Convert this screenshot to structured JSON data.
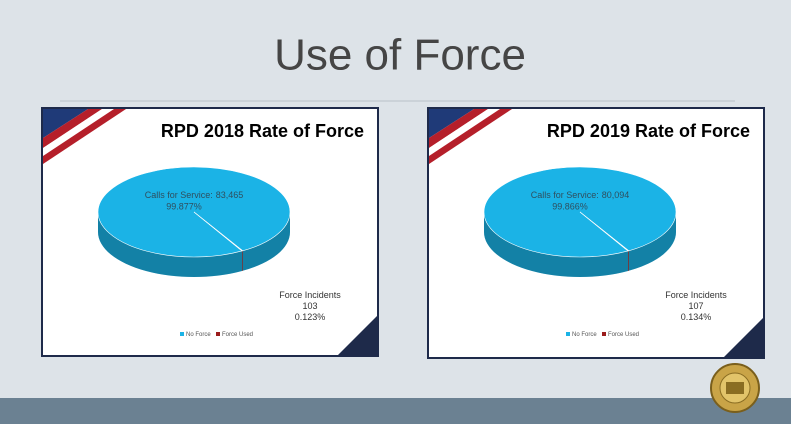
{
  "title": "Use of Force",
  "chart_data": [
    {
      "type": "pie",
      "title": "RPD 2018 Rate of Force",
      "categories": [
        "No Force",
        "Force Used"
      ],
      "colors": [
        "#1bb3e6",
        "#9b1c1c"
      ],
      "values": [
        99.877,
        0.123
      ],
      "value_labels": [
        "99.877%",
        "0.123%"
      ],
      "label_names": [
        "Calls for Service:",
        "Force Incidents"
      ],
      "count_labels": [
        "83,465",
        "103"
      ]
    },
    {
      "type": "pie",
      "title": "RPD 2019 Rate of Force",
      "categories": [
        "No Force",
        "Force Used"
      ],
      "colors": [
        "#1bb3e6",
        "#9b1c1c"
      ],
      "values": [
        99.866,
        0.134
      ],
      "value_labels": [
        "99.866%",
        "0.134%"
      ],
      "label_names": [
        "Calls for Service:",
        "Force Incidents"
      ],
      "count_labels": [
        "80,094",
        "107"
      ]
    }
  ]
}
